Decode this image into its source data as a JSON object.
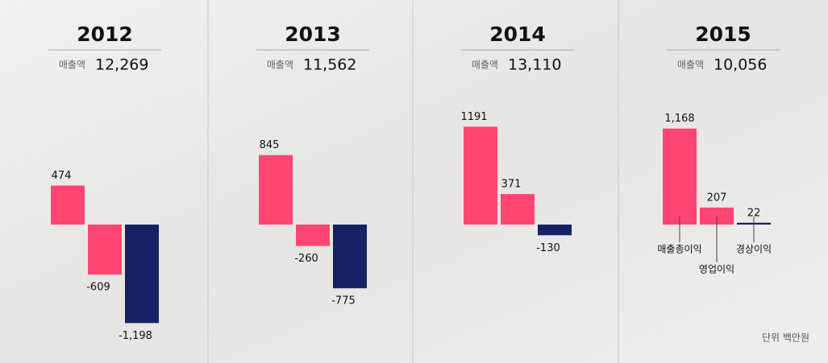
{
  "chart_data": [
    {
      "type": "bar",
      "title": "2012",
      "revenue_name": "매출액",
      "revenue": {
        "value": 12269,
        "label": "12,269"
      },
      "categories": [
        null,
        null,
        null
      ],
      "values": [
        474,
        -609,
        -1198
      ],
      "value_labels": [
        "474",
        "-609",
        "-1,198"
      ],
      "colors": [
        "#ff4672",
        "#ff4672",
        "#172166"
      ],
      "ylim": [
        -1400,
        1400
      ]
    },
    {
      "type": "bar",
      "title": "2013",
      "revenue_name": "매출액",
      "revenue": {
        "value": 11562,
        "label": "11,562"
      },
      "categories": [
        null,
        null,
        null
      ],
      "values": [
        845,
        -260,
        -775
      ],
      "colors": [
        "#ff4672",
        "#ff4672",
        "#172166"
      ],
      "ylim": [
        -1400,
        1400
      ]
    },
    {
      "type": "bar",
      "title": "2014",
      "revenue_name": "매출액",
      "revenue": {
        "value": 13110,
        "label": "13,110"
      },
      "categories": [
        null,
        null,
        null
      ],
      "values": [
        1191,
        371,
        -130
      ],
      "colors": [
        "#ff4672",
        "#ff4672",
        "#172166"
      ],
      "ylim": [
        -1400,
        1400
      ]
    },
    {
      "type": "bar",
      "title": "2015",
      "revenue_name": "매출액",
      "revenue": {
        "value": 10056,
        "label": "10,056"
      },
      "categories": [
        "매출총이익",
        "영업이익",
        "경상이익"
      ],
      "values": [
        1168,
        207,
        22
      ],
      "value_labels": [
        "1,168",
        "207",
        "22"
      ],
      "colors": [
        "#ff4672",
        "#ff4672",
        "#172166"
      ],
      "ylim": [
        -1400,
        1400
      ]
    }
  ],
  "note": "단위 백만원"
}
